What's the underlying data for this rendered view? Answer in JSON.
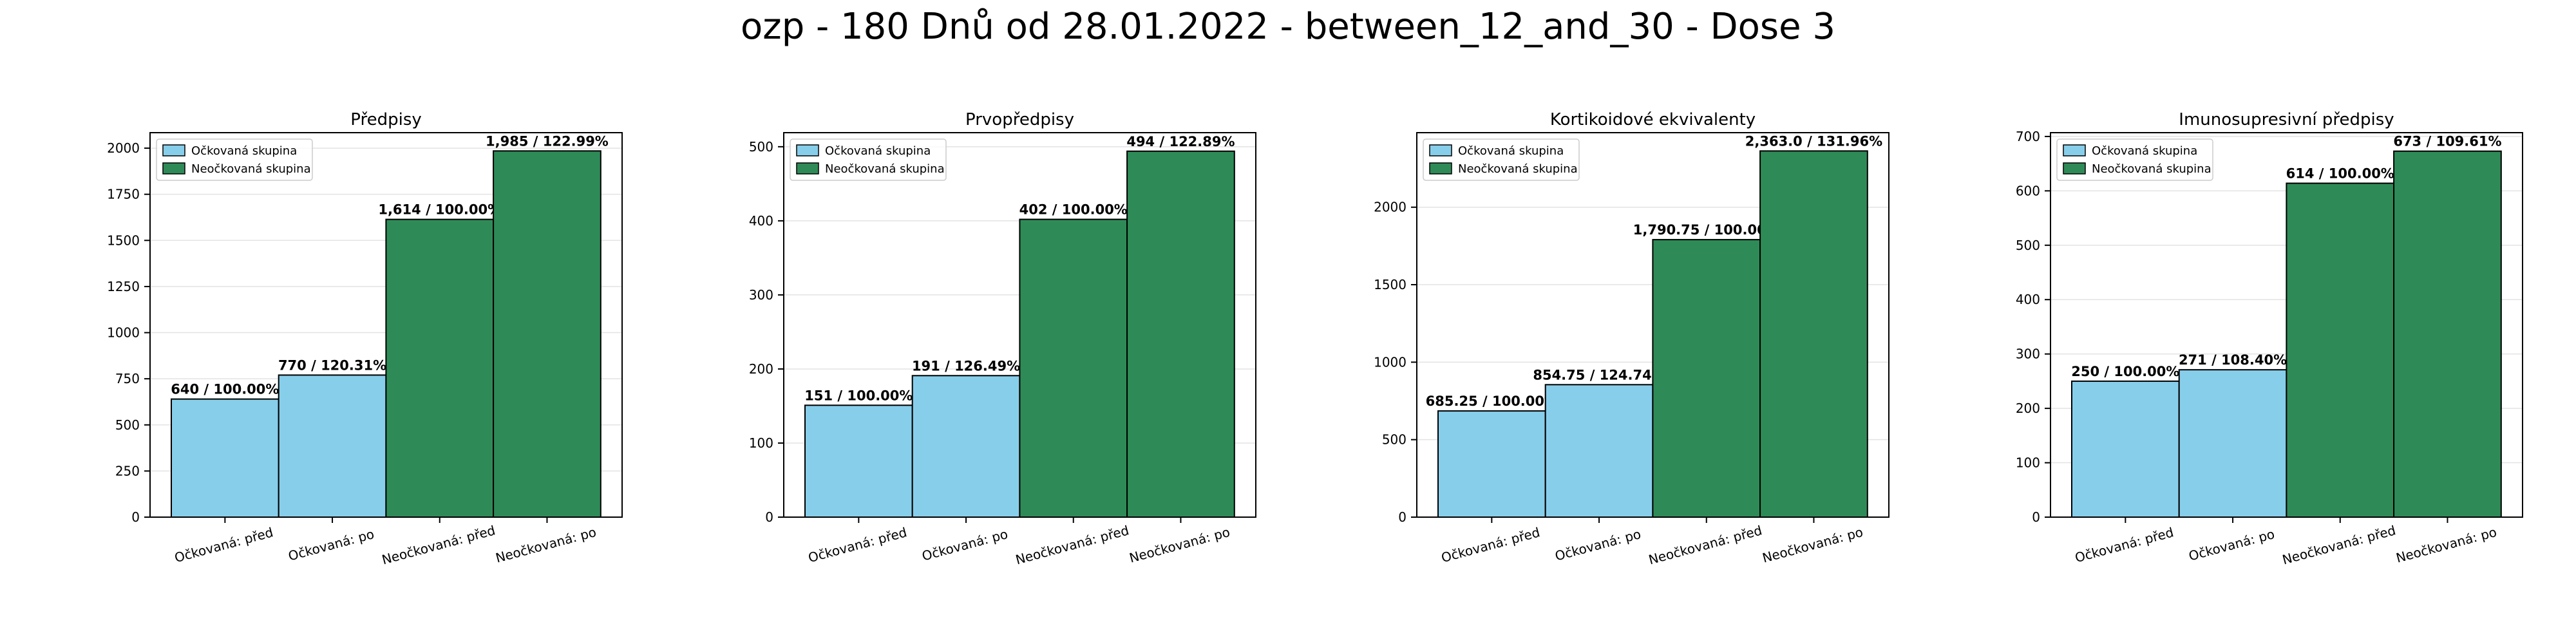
{
  "suptitle": "ozp - 180 Dnů od 28.01.2022 - between_12_and_30 - Dose 3",
  "legend_labels": [
    "Očkovaná skupina",
    "Neočkovaná skupina"
  ],
  "colors": {
    "vaccinated": "#87ceeb",
    "unvaccinated": "#2e8b57"
  },
  "chart_data": [
    {
      "type": "bar",
      "title": "Předpisy",
      "categories": [
        "Očkovaná: před",
        "Očkovaná: po",
        "Neočkovaná: před",
        "Neočkovaná: po"
      ],
      "values": [
        640,
        770,
        1614,
        1985
      ],
      "bar_labels": [
        "640 / 100.00%",
        "770 / 120.31%",
        "1,614 / 100.00%",
        "1,985 / 122.99%"
      ],
      "yticks": [
        0,
        250,
        500,
        750,
        1000,
        1250,
        1500,
        1750,
        2000
      ],
      "ylim": [
        0,
        2084
      ],
      "legend": "top-left",
      "grid": "y"
    },
    {
      "type": "bar",
      "title": "Prvopředpisy",
      "categories": [
        "Očkovaná: před",
        "Očkovaná: po",
        "Neočkovaná: před",
        "Neočkovaná: po"
      ],
      "values": [
        151,
        191,
        402,
        494
      ],
      "bar_labels": [
        "151 / 100.00%",
        "191 / 126.49%",
        "402 / 100.00%",
        "494 / 122.89%"
      ],
      "yticks": [
        0,
        100,
        200,
        300,
        400,
        500
      ],
      "ylim": [
        0,
        519
      ],
      "legend": "top-left",
      "grid": "y"
    },
    {
      "type": "bar",
      "title": "Kortikoidové ekvivalenty",
      "categories": [
        "Očkovaná: před",
        "Očkovaná: po",
        "Neočkovaná: před",
        "Neočkovaná: po"
      ],
      "values": [
        685.25,
        854.75,
        1790.75,
        2363.0
      ],
      "bar_labels": [
        "685.25 / 100.00%",
        "854.75 / 124.74%",
        "1,790.75 / 100.00%",
        "2,363.0 / 131.96%"
      ],
      "yticks": [
        0,
        500,
        1000,
        1500,
        2000
      ],
      "ylim": [
        0,
        2481
      ],
      "legend": "top-left",
      "grid": "y"
    },
    {
      "type": "bar",
      "title": "Imunosupresivní předpisy",
      "categories": [
        "Očkovaná: před",
        "Očkovaná: po",
        "Neočkovaná: před",
        "Neočkovaná: po"
      ],
      "values": [
        250,
        271,
        614,
        673
      ],
      "bar_labels": [
        "250 / 100.00%",
        "271 / 108.40%",
        "614 / 100.00%",
        "673 / 109.61%"
      ],
      "yticks": [
        0,
        100,
        200,
        300,
        400,
        500,
        600,
        700
      ],
      "ylim": [
        0,
        707
      ],
      "legend": "top-left",
      "grid": "y"
    }
  ]
}
